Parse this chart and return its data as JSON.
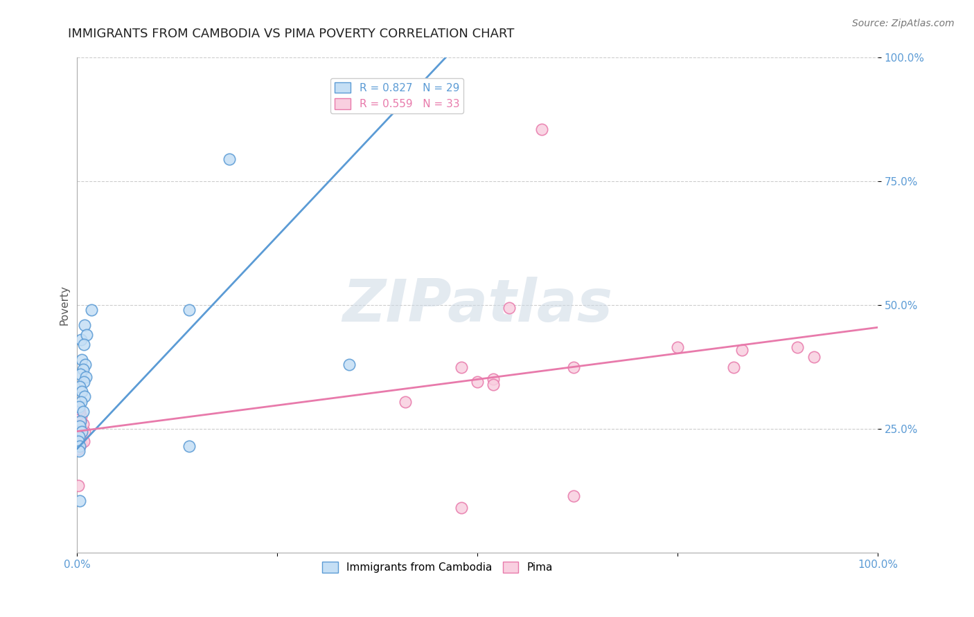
{
  "title": "IMMIGRANTS FROM CAMBODIA VS PIMA POVERTY CORRELATION CHART",
  "source_text": "Source: ZipAtlas.com",
  "ylabel": "Poverty",
  "watermark_text": "ZIPatlas",
  "legend_entries": [
    {
      "label_r": "R = 0.827",
      "label_n": "N = 29",
      "color": "#b8d4f0"
    },
    {
      "label_r": "R = 0.559",
      "label_n": "N = 33",
      "color": "#f5b8cc"
    }
  ],
  "bottom_legend": [
    "Immigrants from Cambodia",
    "Pima"
  ],
  "blue_scatter": [
    [
      0.005,
      0.43
    ],
    [
      0.018,
      0.49
    ],
    [
      0.009,
      0.46
    ],
    [
      0.012,
      0.44
    ],
    [
      0.008,
      0.42
    ],
    [
      0.006,
      0.39
    ],
    [
      0.01,
      0.38
    ],
    [
      0.007,
      0.37
    ],
    [
      0.004,
      0.36
    ],
    [
      0.011,
      0.355
    ],
    [
      0.008,
      0.345
    ],
    [
      0.003,
      0.335
    ],
    [
      0.006,
      0.325
    ],
    [
      0.009,
      0.315
    ],
    [
      0.005,
      0.305
    ],
    [
      0.002,
      0.295
    ],
    [
      0.007,
      0.285
    ],
    [
      0.004,
      0.265
    ],
    [
      0.003,
      0.255
    ],
    [
      0.006,
      0.245
    ],
    [
      0.002,
      0.235
    ],
    [
      0.001,
      0.225
    ],
    [
      0.003,
      0.215
    ],
    [
      0.002,
      0.205
    ],
    [
      0.19,
      0.795
    ],
    [
      0.14,
      0.49
    ],
    [
      0.34,
      0.38
    ],
    [
      0.14,
      0.215
    ],
    [
      0.003,
      0.105
    ]
  ],
  "pink_scatter": [
    [
      0.001,
      0.21
    ],
    [
      0.003,
      0.215
    ],
    [
      0.005,
      0.22
    ],
    [
      0.008,
      0.225
    ],
    [
      0.002,
      0.23
    ],
    [
      0.004,
      0.235
    ],
    [
      0.006,
      0.24
    ],
    [
      0.009,
      0.245
    ],
    [
      0.001,
      0.25
    ],
    [
      0.003,
      0.255
    ],
    [
      0.007,
      0.26
    ],
    [
      0.002,
      0.265
    ],
    [
      0.004,
      0.27
    ],
    [
      0.005,
      0.275
    ],
    [
      0.001,
      0.28
    ],
    [
      0.003,
      0.285
    ],
    [
      0.002,
      0.29
    ],
    [
      0.001,
      0.135
    ],
    [
      0.58,
      0.855
    ],
    [
      0.54,
      0.495
    ],
    [
      0.62,
      0.375
    ],
    [
      0.75,
      0.415
    ],
    [
      0.82,
      0.375
    ],
    [
      0.83,
      0.41
    ],
    [
      0.9,
      0.415
    ],
    [
      0.92,
      0.395
    ],
    [
      0.48,
      0.375
    ],
    [
      0.5,
      0.345
    ],
    [
      0.52,
      0.35
    ],
    [
      0.52,
      0.34
    ],
    [
      0.41,
      0.305
    ],
    [
      0.62,
      0.115
    ],
    [
      0.48,
      0.09
    ]
  ],
  "blue_line_x": [
    0.0,
    0.46
  ],
  "blue_line_y": [
    0.21,
    1.0
  ],
  "pink_line_x": [
    0.0,
    1.0
  ],
  "pink_line_y": [
    0.245,
    0.455
  ],
  "xlim": [
    0.0,
    1.0
  ],
  "ylim": [
    0.0,
    1.0
  ],
  "xticks": [
    0.0,
    0.25,
    0.5,
    0.75,
    1.0
  ],
  "xticklabels": [
    "0.0%",
    "",
    "",
    "",
    "100.0%"
  ],
  "yticks": [
    0.25,
    0.5,
    0.75,
    1.0
  ],
  "yticklabels": [
    "25.0%",
    "50.0%",
    "75.0%",
    "100.0%"
  ],
  "grid_color": "#cccccc",
  "background_color": "#ffffff",
  "blue_color": "#5b9bd5",
  "pink_color": "#e87aab",
  "blue_face_color": "#c5dff5",
  "pink_face_color": "#f9cfe0",
  "title_fontsize": 13,
  "axis_label_fontsize": 11,
  "tick_fontsize": 11,
  "source_fontsize": 10,
  "legend_fontsize": 11
}
